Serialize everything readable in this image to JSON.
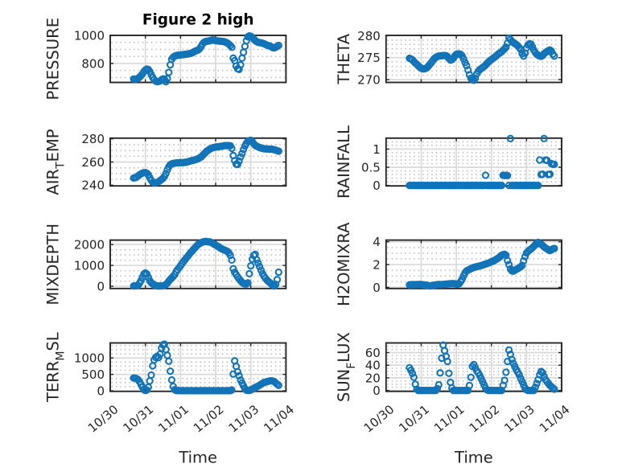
{
  "figure": {
    "title": "Figure 2 high",
    "background": "#ffffff",
    "marker_color": "#1273b7",
    "axis_color": "#262626",
    "grid_major_color": "#d9d9d9",
    "grid_minor_color": "#a3a3a3",
    "text_color": "#262626"
  },
  "chart_data": {
    "type": "scatter",
    "title": "Figure 2 high",
    "xlabel": "Time",
    "x": {
      "start_day": 0.66667,
      "step_day": 0.0416667,
      "lim": [
        0,
        5
      ],
      "tick_values": [
        0,
        1,
        2,
        3,
        4,
        5
      ],
      "tick_labels": [
        "10/30",
        "10/31",
        "11/01",
        "11/02",
        "11/03",
        "11/04"
      ],
      "minor_step": 0.125
    },
    "subplots": [
      {
        "id": "pressure",
        "ylabel": "PRESSURE",
        "ylabel_parts": [
          {
            "text": "PRESSURE",
            "sub": false
          }
        ],
        "ylim": [
          664.75,
          1000.25
        ],
        "yticks": [
          800,
          1000
        ],
        "ytick_labels": [
          "800",
          "1000"
        ],
        "yminor_step": 50,
        "values": [
          689,
          688.0,
          689.0,
          694.0,
          702.1,
          712.0,
          725.9,
          742.1,
          753.0,
          759.9,
          756.9,
          743.0,
          720.2,
          699.9,
          685.0,
          674.1,
          670.0,
          671.0,
          675.0,
          683.1,
          690.0,
          688.1,
          670.2,
          693.0,
          736.7,
          790.3,
          830.0,
          844.9,
          852.0,
          856.0,
          858.0,
          859.5,
          861.0,
          862.0,
          863.0,
          864.5,
          866.0,
          867.5,
          869.0,
          872.5,
          876.0,
          882.0,
          888.0,
          892.0,
          896.0,
          904.9,
          920.1,
          938.0,
          949.9,
          956.0,
          958.0,
          960.0,
          962.0,
          966.0,
          968.0,
          966.0,
          963.0,
          961.5,
          960.0,
          959.0,
          958.0,
          956.5,
          955.0,
          950.0,
          945.9,
          938.0,
          928.1,
          915.4,
          838.0,
          820.1,
          781.8,
          762.0,
          757.0,
          790.4,
          838.0,
          879.7,
          922.3,
          962.0,
          989.8,
          997.0,
          994.0,
          986.1,
          974.9,
          963.0,
          956.1,
          951.0,
          949.0,
          947.0,
          944.0,
          941.0,
          936.0,
          931.0,
          928.0,
          924.0,
          919.0,
          913.0,
          911.0,
          915.1,
          922.0,
          928.9
        ]
      },
      {
        "id": "theta",
        "ylabel": "THETA",
        "ylabel_parts": [
          {
            "text": "THETA",
            "sub": false
          }
        ],
        "ylim": [
          269.36,
          280.07
        ],
        "yticks": [
          270,
          275,
          280
        ],
        "ytick_labels": [
          "270",
          "275",
          "280"
        ],
        "yminor_step": 1,
        "values": [
          274.85,
          274.7,
          274.5,
          274.1,
          273.75,
          273.5,
          273.15,
          272.85,
          272.6,
          272.45,
          272.45,
          272.55,
          272.7,
          273.1,
          273.5,
          273.9,
          274.35,
          274.8,
          275.05,
          275.25,
          275.35,
          275.4,
          275.45,
          275.48,
          275.5,
          275.45,
          275.2,
          274.8,
          274.45,
          274.55,
          274.9,
          275.4,
          275.75,
          275.85,
          275.85,
          275.75,
          275.4,
          274.69,
          273.9,
          273.21,
          272.19,
          271.1,
          270.31,
          269.95,
          269.85,
          270.3,
          271.3,
          271.9,
          272.25,
          272.5,
          272.75,
          273.0,
          273.3,
          273.7,
          274.0,
          274.3,
          274.55,
          274.8,
          275.05,
          275.3,
          275.6,
          275.9,
          276.1,
          276.35,
          276.7,
          277.0,
          277.4,
          278.31,
          279.45,
          279.1,
          278.7,
          278.45,
          278.2,
          278.0,
          277.7,
          277.3,
          276.89,
          275.9,
          275.35,
          276.01,
          277.2,
          277.89,
          278.15,
          278.1,
          277.5,
          276.7,
          276.15,
          275.8,
          275.55,
          275.35,
          275.3,
          275.5,
          275.9,
          276.15,
          276.4,
          276.6,
          276.75,
          276.49,
          275.8,
          275.35
        ]
      },
      {
        "id": "air-temp",
        "ylabel": "AIR_TEMP",
        "ylabel_parts": [
          {
            "text": "AIR",
            "sub": false
          },
          {
            "text": "T",
            "sub": true
          },
          {
            "text": "EMP",
            "sub": false
          }
        ],
        "ylim": [
          239.4,
          280.6
        ],
        "yticks": [
          240,
          260,
          280
        ],
        "ytick_labels": [
          "240",
          "260",
          "280"
        ],
        "yminor_step": 5,
        "values": [
          246.2,
          246.5,
          246.9,
          248.0,
          249.0,
          249.8,
          250.4,
          250.8,
          250.9,
          250.3,
          249.0,
          246.5,
          244.2,
          242.6,
          241.9,
          242.0,
          242.5,
          243.1,
          243.9,
          244.9,
          245.9,
          247.5,
          250.0,
          253.3,
          255.9,
          257.7,
          258.4,
          258.8,
          259.0,
          259.2,
          259.3,
          259.4,
          259.5,
          259.5,
          259.5,
          259.7,
          259.9,
          260.2,
          260.6,
          261.0,
          261.3,
          261.6,
          262.0,
          262.4,
          262.9,
          263.6,
          264.3,
          265.6,
          266.9,
          268.1,
          269.4,
          270.3,
          271.2,
          271.8,
          272.3,
          272.6,
          272.9,
          273.1,
          273.2,
          273.4,
          273.6,
          273.8,
          274.1,
          274.2,
          274.2,
          274.2,
          274.0,
          271.8,
          265.6,
          261.2,
          258.2,
          257.9,
          260.8,
          264.4,
          267.4,
          270.8,
          273.8,
          276.2,
          277.7,
          278.5,
          278.7,
          277.6,
          275.8,
          274.4,
          273.6,
          273.1,
          272.5,
          272.1,
          271.8,
          271.5,
          271.3,
          271.3,
          271.2,
          271.1,
          271.1,
          270.9,
          270.6,
          270.2,
          269.8,
          269.4
        ]
      },
      {
        "id": "rainfall",
        "ylabel": "RAINFALL",
        "ylabel_parts": [
          {
            "text": "RAINFALL",
            "sub": false
          }
        ],
        "ylim": [
          -0.013,
          1.301
        ],
        "yticks": [
          0,
          0.5,
          1
        ],
        "ytick_labels": [
          "0",
          "0.5",
          "1"
        ],
        "yminor_step": 0.1,
        "values": [
          0.0,
          0.0,
          0.0,
          0.0,
          0.0,
          0.0,
          0.0,
          0.0,
          0.0,
          0.0,
          0.0,
          0.0,
          0.0,
          0.0,
          0.0,
          0.0,
          0.0,
          0.0,
          0.0,
          0.0,
          0.0,
          0.0,
          0.0,
          0.0,
          0.0,
          0.0,
          0.0,
          0.0,
          0.0,
          0.0,
          0.0,
          0.0,
          0.0,
          0.0,
          0.0,
          0.0,
          0.0,
          0.0,
          0.0,
          0.0,
          0.0,
          0.0,
          0.0,
          0.0,
          0.0,
          0.0,
          0.0,
          0.0,
          0.0,
          0.0,
          0.0,
          0.0,
          0.28,
          0.0,
          0.0,
          0.0,
          0.0,
          0.0,
          0.0,
          0.0,
          0.0,
          0.0,
          0.0,
          0.0,
          0.28,
          0.27,
          0.28,
          0.27,
          0.0,
          1.29,
          0.0,
          0.0,
          0.0,
          0.0,
          0.0,
          0.0,
          0.0,
          0.0,
          0.0,
          0.0,
          0.0,
          0.0,
          0.0,
          0.0,
          0.0,
          0.0,
          0.0,
          0.0,
          0.0,
          0.7,
          0.3,
          0.31,
          1.29,
          0.7,
          0.69,
          0.3,
          0.31,
          0.6,
          0.58,
          0.58
        ]
      },
      {
        "id": "mixdepth",
        "ylabel": "MIXDEPTH",
        "ylabel_parts": [
          {
            "text": "MIXDEPTH",
            "sub": false
          }
        ],
        "ylim": [
          -105.25,
          2210.25
        ],
        "yticks": [
          0,
          1000,
          2000
        ],
        "ytick_labels": [
          "0",
          "1000",
          "2000"
        ],
        "yminor_step": 250,
        "values": [
          15,
          20,
          25,
          45,
          151,
          270,
          429,
          590,
          635,
          590,
          429,
          265,
          171,
          120,
          60,
          30,
          20,
          15,
          15,
          20,
          25,
          45,
          86,
          150,
          249,
          331,
          400,
          469,
          561,
          700,
          799,
          886,
          980,
          1089,
          1181,
          1270,
          1359,
          1441,
          1530,
          1619,
          1691,
          1780,
          1849,
          1931,
          2000,
          2040,
          2090,
          2115,
          2135,
          2145,
          2140,
          2125,
          2130,
          2095,
          2060,
          2015,
          1975,
          1930,
          1890,
          1835,
          1795,
          1765,
          1735,
          1705,
          1669,
          1595,
          1481,
          1257,
          840,
          671,
          559,
          450,
          361,
          269,
          190,
          140,
          115,
          115,
          165,
          603,
          980,
          1297,
          1480,
          1530,
          1272,
          1109,
          940,
          771,
          609,
          480,
          391,
          299,
          230,
          180,
          109,
          45,
          15,
          92,
          320,
          677
        ]
      },
      {
        "id": "h2omixra",
        "ylabel": "H2OMIXRA",
        "ylabel_parts": [
          {
            "text": "H2OMIXRA",
            "sub": false
          }
        ],
        "ylim": [
          -0.1,
          4.15
        ],
        "yticks": [
          0,
          2,
          4
        ],
        "ytick_labels": [
          "0",
          "2",
          "4"
        ],
        "yminor_step": 0.5,
        "values": [
          0.22,
          0.23,
          0.25,
          0.24,
          0.24,
          0.25,
          0.26,
          0.26,
          0.25,
          0.23,
          0.22,
          0.2,
          0.18,
          0.15,
          0.12,
          0.15,
          0.17,
          0.2,
          0.22,
          0.24,
          0.26,
          0.25,
          0.25,
          0.26,
          0.27,
          0.28,
          0.3,
          0.31,
          0.32,
          0.33,
          0.33,
          0.32,
          0.3,
          0.28,
          0.32,
          0.5,
          0.72,
          1.02,
          1.28,
          1.44,
          1.52,
          1.58,
          1.64,
          1.7,
          1.75,
          1.79,
          1.82,
          1.84,
          1.88,
          1.92,
          1.96,
          2.0,
          2.05,
          2.09,
          2.14,
          2.19,
          2.24,
          2.3,
          2.36,
          2.44,
          2.52,
          2.6,
          2.7,
          2.82,
          2.88,
          2.9,
          2.82,
          2.35,
          2.0,
          1.62,
          1.45,
          1.42,
          1.5,
          1.58,
          1.65,
          1.72,
          1.8,
          1.93,
          2.33,
          2.7,
          3.02,
          3.16,
          3.27,
          3.37,
          3.47,
          3.6,
          3.74,
          3.89,
          3.95,
          3.86,
          3.79,
          3.68,
          3.56,
          3.46,
          3.38,
          3.29,
          3.23,
          3.29,
          3.38,
          3.42
        ]
      },
      {
        "id": "terr-msl",
        "ylabel": "TERR_MSL",
        "ylabel_parts": [
          {
            "text": "TERR",
            "sub": false
          },
          {
            "text": "M",
            "sub": true
          },
          {
            "text": "SL",
            "sub": false
          }
        ],
        "ylim": [
          -17,
          1458
        ],
        "yticks": [
          0,
          500,
          1000
        ],
        "ytick_labels": [
          "0",
          "500",
          "1000"
        ],
        "yminor_step": 125,
        "values": [
          390,
          385,
          368,
          340,
          279,
          195,
          111,
          35,
          8,
          25,
          112,
          300,
          479,
          761,
          940,
          1019,
          1050,
          1010,
          1119,
          1301,
          1400,
          1420,
          1259,
          1080,
          901,
          598,
          330,
          132,
          35,
          10,
          5,
          5,
          4,
          4,
          4,
          4,
          4,
          4,
          4,
          4,
          4,
          4,
          4,
          4,
          4,
          4,
          4,
          4,
          4,
          4,
          4,
          4,
          4,
          4,
          4,
          4,
          4,
          4,
          4,
          4,
          4,
          4,
          4,
          4,
          4,
          4,
          4,
          24,
          510,
          912,
          744,
          580,
          456,
          329,
          235,
          151,
          60,
          20,
          10,
          12,
          25,
          48,
          75,
          100,
          122,
          145,
          172,
          200,
          226,
          250,
          266,
          280,
          291,
          300,
          306,
          298,
          278,
          242,
          200,
          165
        ]
      },
      {
        "id": "sun-flux",
        "ylabel": "SUN_FLUX",
        "ylabel_parts": [
          {
            "text": "SUN",
            "sub": false
          },
          {
            "text": "F",
            "sub": true
          },
          {
            "text": "LUX",
            "sub": false
          }
        ],
        "ylim": [
          -1.4,
          75.3
        ],
        "yticks": [
          0,
          20,
          40,
          60
        ],
        "ytick_labels": [
          "0",
          "20",
          "40",
          "60"
        ],
        "yminor_step": 5,
        "values": [
          36,
          32.0,
          27.0,
          21.0,
          9.9,
          2.0,
          0.0,
          0.0,
          0.0,
          0.0,
          0.0,
          0.0,
          0.0,
          0.0,
          0.0,
          0.0,
          0.0,
          0.0,
          0.0,
          3.0,
          9.0,
          27.8,
          51.2,
          72.0,
          63.1,
          53.9,
          46.0,
          27.2,
          12.9,
          4.0,
          0.0,
          0.0,
          0.0,
          0.0,
          0.0,
          0.0,
          0.0,
          0.0,
          0.0,
          0.0,
          0.1,
          8.0,
          20.9,
          38.0,
          41.0,
          36.0,
          31.0,
          28.0,
          24.0,
          19.0,
          14.0,
          9.0,
          4.0,
          1.0,
          0.0,
          0.0,
          0.0,
          0.0,
          0.0,
          0.0,
          0.0,
          0.0,
          0.0,
          0.0,
          8.1,
          16.0,
          28.9,
          46.1,
          64.0,
          57.1,
          49.0,
          43.0,
          38.0,
          33.0,
          29.0,
          25.0,
          19.0,
          14.0,
          9.0,
          4.0,
          1.0,
          0.0,
          0.0,
          0.0,
          0.0,
          0.0,
          5.0,
          11.0,
          17.1,
          25.0,
          30.0,
          28.0,
          22.0,
          17.0,
          14.0,
          11.0,
          8.0,
          6.0,
          4.0,
          2.0
        ]
      }
    ]
  }
}
